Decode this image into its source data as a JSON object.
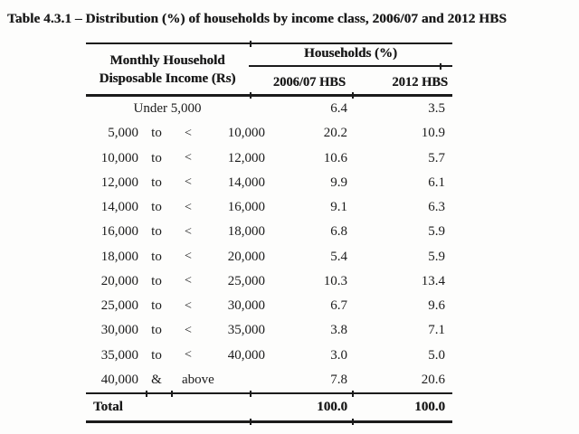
{
  "colors": {
    "background": "#fdfdfc",
    "text": "#1b1b1b",
    "rule": "#1b1b1b"
  },
  "title": "Table 4.3.1 – Distribution (%) of households by income class, 2006/07 and 2012 HBS",
  "table": {
    "stub_header_line1": "Monthly Household",
    "stub_header_line2": "Disposable Income (Rs)",
    "group_header": "Households (%)",
    "columns": [
      "2006/07 HBS",
      "2012 HBS"
    ],
    "rows": [
      {
        "kind": "center",
        "low": "Under 5,000",
        "mid": "",
        "op": "",
        "high": "",
        "v_2006_07": "6.4",
        "v_2012": "3.5"
      },
      {
        "kind": "range",
        "low": "5,000",
        "mid": "to",
        "op": "<",
        "high": "10,000",
        "v_2006_07": "20.2",
        "v_2012": "10.9"
      },
      {
        "kind": "range",
        "low": "10,000",
        "mid": "to",
        "op": "<",
        "high": "12,000",
        "v_2006_07": "10.6",
        "v_2012": "5.7"
      },
      {
        "kind": "range",
        "low": "12,000",
        "mid": "to",
        "op": "<",
        "high": "14,000",
        "v_2006_07": "9.9",
        "v_2012": "6.1"
      },
      {
        "kind": "range",
        "low": "14,000",
        "mid": "to",
        "op": "<",
        "high": "16,000",
        "v_2006_07": "9.1",
        "v_2012": "6.3"
      },
      {
        "kind": "range",
        "low": "16,000",
        "mid": "to",
        "op": "<",
        "high": "18,000",
        "v_2006_07": "6.8",
        "v_2012": "5.9"
      },
      {
        "kind": "range",
        "low": "18,000",
        "mid": "to",
        "op": "<",
        "high": "20,000",
        "v_2006_07": "5.4",
        "v_2012": "5.9"
      },
      {
        "kind": "range",
        "low": "20,000",
        "mid": "to",
        "op": "<",
        "high": "25,000",
        "v_2006_07": "10.3",
        "v_2012": "13.4"
      },
      {
        "kind": "range",
        "low": "25,000",
        "mid": "to",
        "op": "<",
        "high": "30,000",
        "v_2006_07": "6.7",
        "v_2012": "9.6"
      },
      {
        "kind": "range",
        "low": "30,000",
        "mid": "to",
        "op": "<",
        "high": "35,000",
        "v_2006_07": "3.8",
        "v_2012": "7.1"
      },
      {
        "kind": "range",
        "low": "35,000",
        "mid": "to",
        "op": "<",
        "high": "40,000",
        "v_2006_07": "3.0",
        "v_2012": "5.0"
      },
      {
        "kind": "open",
        "low": "40,000",
        "mid": "&",
        "op": "",
        "high": "above",
        "v_2006_07": "7.8",
        "v_2012": "20.6"
      }
    ],
    "total": {
      "label": "Total",
      "v_2006_07": "100.0",
      "v_2012": "100.0"
    }
  }
}
